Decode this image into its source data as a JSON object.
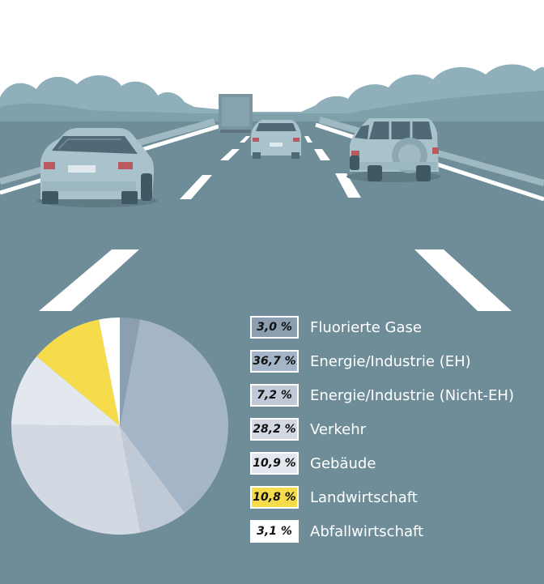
{
  "chart_data": {
    "type": "pie",
    "title": "",
    "slices": [
      {
        "label": "Fluorierte Gase",
        "value_label": "3,0 %",
        "value": 3.0,
        "color": "#8b9fb0"
      },
      {
        "label": "Energie/Industrie (EH)",
        "value_label": "36,7 %",
        "value": 36.7,
        "color": "#a3b5c6"
      },
      {
        "label": "Energie/Industrie (Nicht-EH)",
        "value_label": "7,2 %",
        "value": 7.2,
        "color": "#bfcad6"
      },
      {
        "label": "Verkehr",
        "value_label": "28,2 %",
        "value": 28.2,
        "color": "#d2d9e3"
      },
      {
        "label": "Gebäude",
        "value_label": "10,9 %",
        "value": 10.9,
        "color": "#e3e8ee"
      },
      {
        "label": "Landwirtschaft",
        "value_label": "10,8 %",
        "value": 10.8,
        "color": "#f6dc4a"
      },
      {
        "label": "Abfallwirtschaft",
        "value_label": "3,1 %",
        "value": 3.1,
        "color": "#ffffff"
      }
    ],
    "start": "12 o'clock",
    "direction": "clockwise",
    "legend_position": "right"
  },
  "illustration": {
    "description_icons": [
      "sedan-car-icon",
      "suv-car-icon",
      "truck-icon",
      "small-car-icon",
      "trees-icon",
      "road-icon"
    ],
    "colors": {
      "sky": "#ffffff",
      "road": "#6e8d98",
      "trees": "#8fb0ba",
      "lane_marking": "#ffffff"
    }
  }
}
